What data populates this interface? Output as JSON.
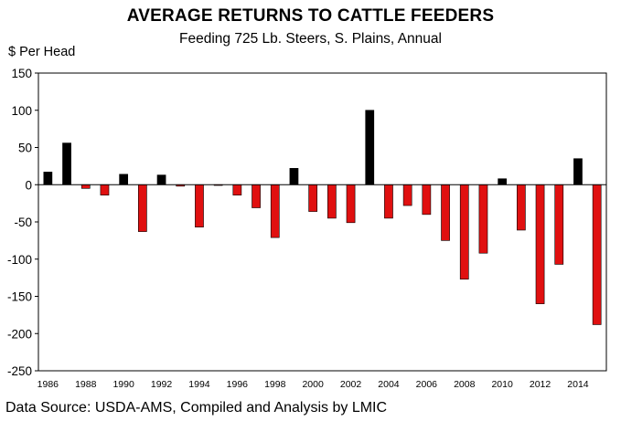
{
  "chart_data": {
    "type": "bar",
    "title": "AVERAGE RETURNS TO CATTLE FEEDERS",
    "subtitle": "Feeding 725 Lb. Steers, S. Plains, Annual",
    "ylabel": "$ Per Head",
    "xlabel": "",
    "ylim": [
      -250,
      150
    ],
    "yticks": [
      150,
      100,
      50,
      0,
      -50,
      -100,
      -150,
      -200,
      -250
    ],
    "ytick_labels": [
      "150",
      "100",
      "50",
      "0",
      "-50",
      "-100",
      "-150",
      "-200",
      "-250"
    ],
    "categories": [
      1986,
      1987,
      1988,
      1989,
      1990,
      1991,
      1992,
      1993,
      1994,
      1995,
      1996,
      1997,
      1998,
      1999,
      2000,
      2001,
      2002,
      2003,
      2004,
      2005,
      2006,
      2007,
      2008,
      2009,
      2010,
      2011,
      2012,
      2013,
      2014,
      2015
    ],
    "xtick_labels": [
      "1986",
      "1988",
      "1990",
      "1992",
      "1994",
      "1996",
      "1998",
      "2000",
      "2002",
      "2004",
      "2006",
      "2008",
      "2010",
      "2012",
      "2014"
    ],
    "values": [
      17,
      56,
      -5,
      -14,
      14,
      -63,
      13,
      -2,
      -57,
      -1,
      -14,
      -31,
      -71,
      22,
      -36,
      -45,
      -51,
      100,
      -45,
      -28,
      -40,
      -75,
      -127,
      -92,
      8,
      -61,
      -160,
      -107,
      35,
      -188
    ],
    "positive_color": "#000000",
    "negative_color": "#e01010",
    "grid": false,
    "legend": "none",
    "source": "Data Source:  USDA-AMS, Compiled and Analysis by LMIC"
  }
}
